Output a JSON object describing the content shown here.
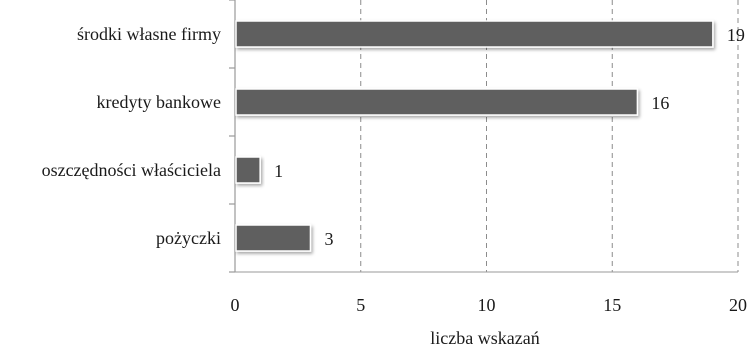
{
  "chart_data": {
    "type": "bar",
    "orientation": "horizontal",
    "categories": [
      "środki własne firmy",
      "kredyty bankowe",
      "oszczędności właściciela",
      "pożyczki"
    ],
    "values": [
      19,
      16,
      1,
      3
    ],
    "data_labels": [
      "19",
      "16",
      "1",
      "3"
    ],
    "xlabel": "liczba wskazań",
    "ylabel": "",
    "xlim": [
      0,
      20
    ],
    "x_ticks": [
      "0",
      "5",
      "10",
      "15",
      "20"
    ],
    "grid": "vertical dashed",
    "legend": "none",
    "bar_color": "#5f5f5f",
    "bar_outline_color": "#ffffff",
    "grid_color": "#8c8c8c",
    "axis_color": "#9a9a9a"
  }
}
